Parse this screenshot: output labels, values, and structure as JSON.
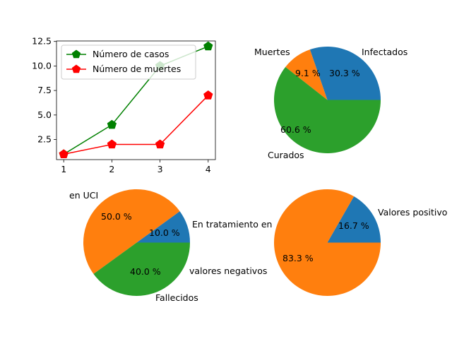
{
  "chart_data": [
    {
      "type": "line",
      "x": [
        1,
        2,
        3,
        4
      ],
      "xticks": [
        "1",
        "2",
        "3",
        "4"
      ],
      "yticks": [
        "2.5",
        "5.0",
        "7.5",
        "10.0",
        "12.5"
      ],
      "xlim": [
        0.85,
        4.15
      ],
      "ylim": [
        0.45,
        12.55
      ],
      "grid": false,
      "legend_position": "top-left",
      "series": [
        {
          "name": "Número de casos",
          "values": [
            1,
            4,
            10,
            12
          ],
          "color": "#008000",
          "marker": "pentagon"
        },
        {
          "name": "Número de muertes",
          "values": [
            1,
            2,
            2,
            7
          ],
          "color": "#ff0000",
          "marker": "pentagon"
        }
      ]
    },
    {
      "type": "pie",
      "labels": [
        "Infectados",
        "Muertes",
        "Curados"
      ],
      "values": [
        30.3,
        9.1,
        60.6
      ],
      "pct_labels": [
        "30.3 %",
        "9.1 %",
        "60.6 %"
      ],
      "colors": [
        "#1f77b4",
        "#ff7f0e",
        "#2ca02c"
      ]
    },
    {
      "type": "pie",
      "labels": [
        "En tratamiento en",
        "en UCI",
        "Fallecidos"
      ],
      "values": [
        10.0,
        50.0,
        40.0
      ],
      "pct_labels": [
        "10.0 %",
        "50.0 %",
        "40.0 %"
      ],
      "colors": [
        "#1f77b4",
        "#ff7f0e",
        "#2ca02c"
      ],
      "extra_texts": [
        "valores negativos"
      ]
    },
    {
      "type": "pie",
      "labels": [
        "Valores positivo",
        ""
      ],
      "values": [
        16.7,
        83.3
      ],
      "pct_labels": [
        "16.7 %",
        "83.3 %"
      ],
      "colors": [
        "#1f77b4",
        "#ff7f0e"
      ]
    }
  ]
}
